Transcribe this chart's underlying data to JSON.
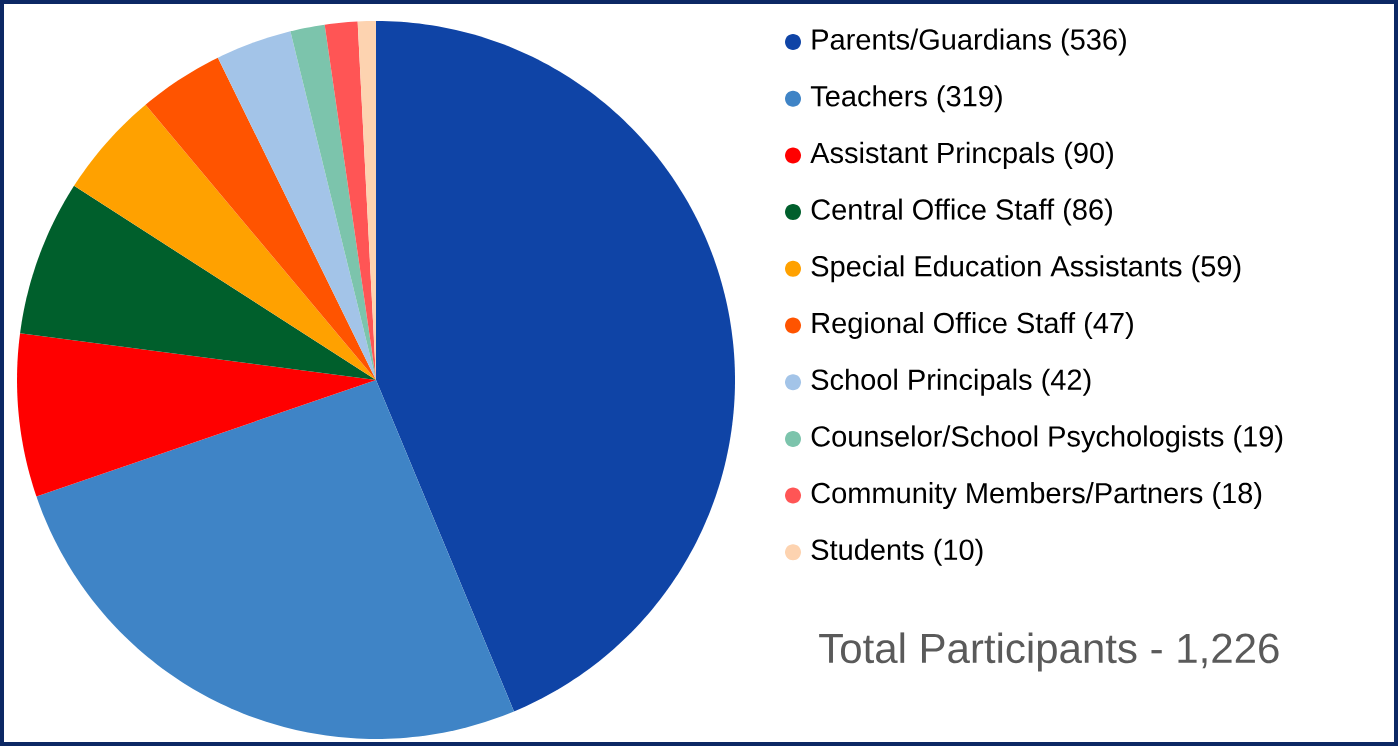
{
  "chart_data": {
    "type": "pie",
    "categories": [
      "Parents/Guardians (536)",
      "Teachers (319)",
      "Assistant Princpals (90)",
      "Central Office Staff (86)",
      "Special Education Assistants (59)",
      "Regional Office Staff (47)",
      "School Principals (42)",
      "Counselor/School Psychologists (19)",
      "Community Members/Partners (18)",
      "Students (10)"
    ],
    "values": [
      536,
      319,
      90,
      86,
      59,
      47,
      42,
      19,
      18,
      10
    ],
    "colors": [
      "#0f44a6",
      "#3f84c6",
      "#ff0000",
      "#005f2c",
      "#ffa100",
      "#ff5400",
      "#a3c4e8",
      "#7cc4ac",
      "#ff5555",
      "#fdd3b0"
    ],
    "legend": "right",
    "annotations": [
      "Total Participants - 1,226"
    ]
  }
}
